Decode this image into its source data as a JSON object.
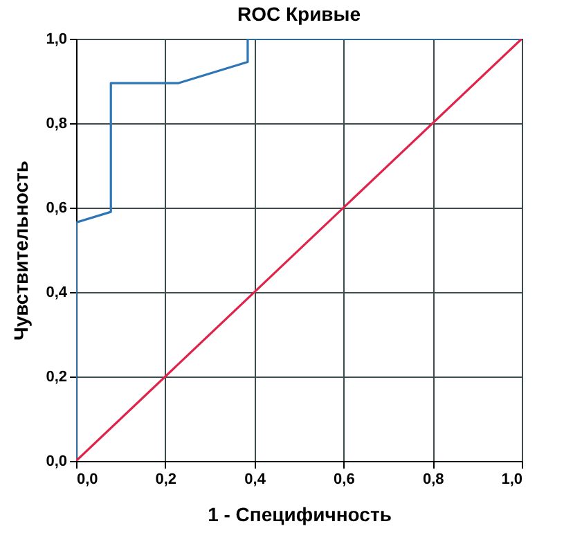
{
  "chart_data": {
    "type": "line",
    "title": "ROC Кривые",
    "xlabel": "1 - Специфичность",
    "ylabel": "Чувствительность",
    "series": [
      {
        "color": "#2e75b6",
        "x": [
          0,
          0,
          0.078,
          0.078,
          0.23,
          0.385,
          0.385,
          1
        ],
        "values": [
          0,
          0.565,
          0.59,
          0.895,
          0.895,
          0.945,
          1,
          1
        ]
      },
      {
        "color": "#e0234a",
        "x": [
          0,
          1
        ],
        "values": [
          0,
          1
        ]
      }
    ],
    "xlim": [
      0,
      1
    ],
    "ylim": [
      0,
      1
    ],
    "xticks": [
      {
        "value": 0,
        "label": "0,0"
      },
      {
        "value": 0.2,
        "label": "0,2"
      },
      {
        "value": 0.4,
        "label": "0,4"
      },
      {
        "value": 0.6,
        "label": "0,6"
      },
      {
        "value": 0.8,
        "label": "0,8"
      },
      {
        "value": 1,
        "label": "1,0"
      }
    ],
    "yticks": [
      {
        "value": 0,
        "label": "0,0"
      },
      {
        "value": 0.2,
        "label": "0,2"
      },
      {
        "value": 0.4,
        "label": "0,4"
      },
      {
        "value": 0.6,
        "label": "0,6"
      },
      {
        "value": 0.8,
        "label": "0,8"
      },
      {
        "value": 1,
        "label": "1,0"
      }
    ],
    "grid": true,
    "marker": "none",
    "line_style": "solid"
  }
}
